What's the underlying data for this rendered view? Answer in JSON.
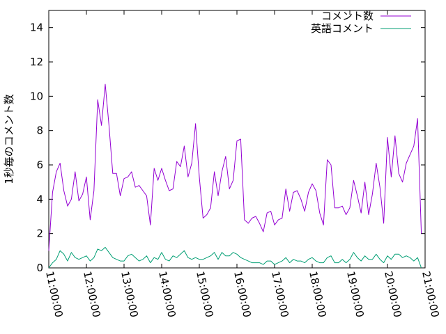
{
  "chart_data": {
    "type": "line",
    "title": "",
    "xlabel": "",
    "ylabel": "1秒毎のコメント数",
    "ylim": [
      0,
      15
    ],
    "y_ticks": [
      0,
      2,
      4,
      6,
      8,
      10,
      12,
      14
    ],
    "x_tick_labels": [
      "11:00:00",
      "12:00:00",
      "13:00:00",
      "14:00:00",
      "15:00:00",
      "16:00:00",
      "17:00:00",
      "18:00:00",
      "19:00:00",
      "20:00:00",
      "21:00:00"
    ],
    "x_range_hours": [
      11,
      21
    ],
    "grid": false,
    "legend_position": "top-right",
    "colors": {
      "comments": "#9400d3",
      "english": "#009e73"
    },
    "series": [
      {
        "name": "コメント数",
        "color": "#9400d3",
        "points": [
          [
            11.0,
            1.0
          ],
          [
            11.1,
            4.4
          ],
          [
            11.2,
            5.6
          ],
          [
            11.3,
            6.1
          ],
          [
            11.4,
            4.5
          ],
          [
            11.5,
            3.6
          ],
          [
            11.6,
            4.0
          ],
          [
            11.7,
            5.6
          ],
          [
            11.8,
            3.9
          ],
          [
            11.9,
            4.3
          ],
          [
            12.0,
            5.3
          ],
          [
            12.1,
            2.8
          ],
          [
            12.2,
            4.5
          ],
          [
            12.3,
            9.8
          ],
          [
            12.4,
            8.3
          ],
          [
            12.5,
            10.7
          ],
          [
            12.6,
            8.3
          ],
          [
            12.7,
            5.5
          ],
          [
            12.8,
            5.5
          ],
          [
            12.9,
            4.2
          ],
          [
            13.0,
            5.2
          ],
          [
            13.1,
            5.3
          ],
          [
            13.2,
            5.6
          ],
          [
            13.3,
            4.7
          ],
          [
            13.4,
            4.8
          ],
          [
            13.5,
            4.5
          ],
          [
            13.6,
            4.2
          ],
          [
            13.7,
            2.5
          ],
          [
            13.8,
            5.8
          ],
          [
            13.9,
            5.1
          ],
          [
            14.0,
            5.8
          ],
          [
            14.1,
            5.1
          ],
          [
            14.2,
            4.5
          ],
          [
            14.3,
            4.6
          ],
          [
            14.4,
            6.2
          ],
          [
            14.5,
            5.9
          ],
          [
            14.6,
            7.1
          ],
          [
            14.7,
            5.3
          ],
          [
            14.8,
            6.1
          ],
          [
            14.9,
            8.4
          ],
          [
            15.0,
            5.3
          ],
          [
            15.1,
            2.9
          ],
          [
            15.2,
            3.1
          ],
          [
            15.3,
            3.5
          ],
          [
            15.4,
            5.6
          ],
          [
            15.5,
            4.2
          ],
          [
            15.6,
            5.6
          ],
          [
            15.7,
            6.5
          ],
          [
            15.8,
            4.6
          ],
          [
            15.9,
            5.1
          ],
          [
            16.0,
            7.4
          ],
          [
            16.1,
            7.5
          ],
          [
            16.2,
            2.8
          ],
          [
            16.3,
            2.6
          ],
          [
            16.4,
            2.9
          ],
          [
            16.5,
            3.0
          ],
          [
            16.6,
            2.6
          ],
          [
            16.7,
            2.1
          ],
          [
            16.8,
            3.2
          ],
          [
            16.9,
            3.3
          ],
          [
            17.0,
            2.5
          ],
          [
            17.1,
            2.8
          ],
          [
            17.2,
            2.9
          ],
          [
            17.3,
            4.6
          ],
          [
            17.4,
            3.3
          ],
          [
            17.5,
            4.4
          ],
          [
            17.6,
            4.5
          ],
          [
            17.7,
            4.0
          ],
          [
            17.8,
            3.3
          ],
          [
            17.9,
            4.4
          ],
          [
            18.0,
            4.9
          ],
          [
            18.1,
            4.5
          ],
          [
            18.2,
            3.2
          ],
          [
            18.3,
            2.5
          ],
          [
            18.4,
            6.3
          ],
          [
            18.5,
            6.0
          ],
          [
            18.6,
            3.5
          ],
          [
            18.7,
            3.5
          ],
          [
            18.8,
            3.6
          ],
          [
            18.9,
            3.1
          ],
          [
            19.0,
            3.5
          ],
          [
            19.1,
            5.1
          ],
          [
            19.2,
            4.2
          ],
          [
            19.3,
            3.2
          ],
          [
            19.4,
            5.0
          ],
          [
            19.5,
            3.1
          ],
          [
            19.6,
            4.3
          ],
          [
            19.7,
            6.1
          ],
          [
            19.8,
            4.7
          ],
          [
            19.9,
            2.6
          ],
          [
            20.0,
            7.6
          ],
          [
            20.1,
            5.3
          ],
          [
            20.2,
            7.7
          ],
          [
            20.3,
            5.5
          ],
          [
            20.4,
            5.0
          ],
          [
            20.5,
            6.1
          ],
          [
            20.6,
            6.6
          ],
          [
            20.7,
            7.1
          ],
          [
            20.8,
            8.7
          ],
          [
            20.9,
            2.0
          ]
        ]
      },
      {
        "name": "英語コメント",
        "color": "#009e73",
        "points": [
          [
            11.0,
            0.0
          ],
          [
            11.1,
            0.3
          ],
          [
            11.2,
            0.5
          ],
          [
            11.3,
            1.0
          ],
          [
            11.4,
            0.8
          ],
          [
            11.5,
            0.4
          ],
          [
            11.6,
            0.9
          ],
          [
            11.7,
            0.6
          ],
          [
            11.8,
            0.5
          ],
          [
            11.9,
            0.6
          ],
          [
            12.0,
            0.7
          ],
          [
            12.1,
            0.4
          ],
          [
            12.2,
            0.6
          ],
          [
            12.3,
            1.1
          ],
          [
            12.4,
            1.0
          ],
          [
            12.5,
            1.2
          ],
          [
            12.6,
            0.9
          ],
          [
            12.7,
            0.6
          ],
          [
            12.8,
            0.5
          ],
          [
            12.9,
            0.4
          ],
          [
            13.0,
            0.4
          ],
          [
            13.1,
            0.7
          ],
          [
            13.2,
            0.8
          ],
          [
            13.3,
            0.6
          ],
          [
            13.4,
            0.4
          ],
          [
            13.5,
            0.5
          ],
          [
            13.6,
            0.7
          ],
          [
            13.7,
            0.3
          ],
          [
            13.8,
            0.6
          ],
          [
            13.9,
            0.5
          ],
          [
            14.0,
            0.9
          ],
          [
            14.1,
            0.5
          ],
          [
            14.2,
            0.4
          ],
          [
            14.3,
            0.7
          ],
          [
            14.4,
            0.6
          ],
          [
            14.5,
            0.8
          ],
          [
            14.6,
            1.0
          ],
          [
            14.7,
            0.6
          ],
          [
            14.8,
            0.5
          ],
          [
            14.9,
            0.6
          ],
          [
            15.0,
            0.5
          ],
          [
            15.1,
            0.5
          ],
          [
            15.2,
            0.6
          ],
          [
            15.3,
            0.7
          ],
          [
            15.4,
            0.9
          ],
          [
            15.5,
            0.5
          ],
          [
            15.6,
            0.9
          ],
          [
            15.7,
            0.7
          ],
          [
            15.8,
            0.7
          ],
          [
            15.9,
            0.9
          ],
          [
            16.0,
            0.8
          ],
          [
            16.1,
            0.6
          ],
          [
            16.2,
            0.5
          ],
          [
            16.3,
            0.4
          ],
          [
            16.4,
            0.3
          ],
          [
            16.5,
            0.3
          ],
          [
            16.6,
            0.3
          ],
          [
            16.7,
            0.2
          ],
          [
            16.8,
            0.4
          ],
          [
            16.9,
            0.4
          ],
          [
            17.0,
            0.2
          ],
          [
            17.1,
            0.3
          ],
          [
            17.2,
            0.4
          ],
          [
            17.3,
            0.6
          ],
          [
            17.4,
            0.3
          ],
          [
            17.5,
            0.5
          ],
          [
            17.6,
            0.4
          ],
          [
            17.7,
            0.4
          ],
          [
            17.8,
            0.3
          ],
          [
            17.9,
            0.5
          ],
          [
            18.0,
            0.6
          ],
          [
            18.1,
            0.4
          ],
          [
            18.2,
            0.3
          ],
          [
            18.3,
            0.3
          ],
          [
            18.4,
            0.6
          ],
          [
            18.5,
            0.7
          ],
          [
            18.6,
            0.3
          ],
          [
            18.7,
            0.3
          ],
          [
            18.8,
            0.5
          ],
          [
            18.9,
            0.3
          ],
          [
            19.0,
            0.5
          ],
          [
            19.1,
            0.9
          ],
          [
            19.2,
            0.6
          ],
          [
            19.3,
            0.4
          ],
          [
            19.4,
            0.7
          ],
          [
            19.5,
            0.5
          ],
          [
            19.6,
            0.5
          ],
          [
            19.7,
            0.8
          ],
          [
            19.8,
            0.5
          ],
          [
            19.9,
            0.3
          ],
          [
            20.0,
            0.7
          ],
          [
            20.1,
            0.5
          ],
          [
            20.2,
            0.8
          ],
          [
            20.3,
            0.8
          ],
          [
            20.4,
            0.6
          ],
          [
            20.5,
            0.7
          ],
          [
            20.6,
            0.6
          ],
          [
            20.7,
            0.4
          ],
          [
            20.8,
            0.6
          ],
          [
            20.9,
            0.0
          ]
        ]
      }
    ]
  }
}
